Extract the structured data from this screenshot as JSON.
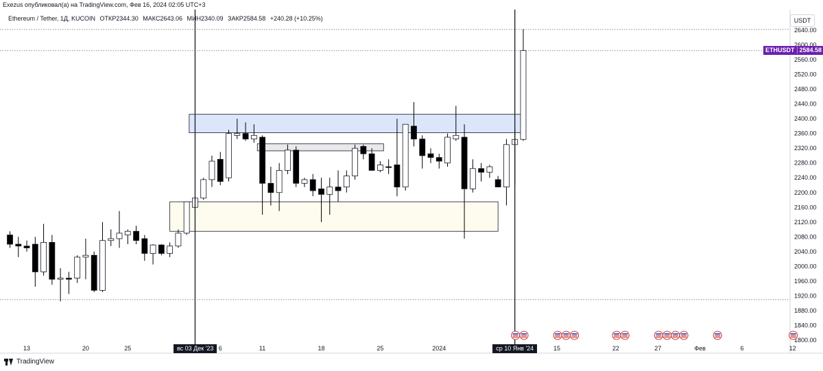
{
  "caption": "Exezus опубликовал(а) на TradingView.com, Фев 16, 2024 02:05 UTC+3",
  "header": {
    "pair": "Ethereum / Tether, 1Д, KUCOIN",
    "open": "ОТКР2344.30",
    "high": "МАКС2643.06",
    "low": "МИН2340.09",
    "close": "ЗАКР2584.58",
    "change": "+240.28 (+10.25%)"
  },
  "currency": "USDT",
  "price_tag": {
    "symbol": "ETHUSDT",
    "value": "2584.58",
    "color": "#6b1fae"
  },
  "markers": {
    "left_date": "вс 03 Дек '23",
    "right_date": "ср 10 Янв '24"
  },
  "footer": {
    "brand": "TradingView"
  },
  "colors": {
    "up_fill": "#ffffff",
    "down_fill": "#000000",
    "wick": "#000000",
    "resistance_zone": "#dce6fb",
    "support_zone": "#fdfcee",
    "mid_zone": "#e9e9ec"
  },
  "chart_data": {
    "type": "candlestick",
    "title": "Ethereum / Tether, 1Д, KUCOIN",
    "ylim": [
      1800,
      2660
    ],
    "y_ticks": [
      1800,
      1840,
      1880,
      1920,
      1960,
      2000,
      2040,
      2080,
      2120,
      2160,
      2200,
      2240,
      2280,
      2320,
      2360,
      2400,
      2440,
      2480,
      2520,
      2560,
      2600,
      2640
    ],
    "y_tick_labels": [
      "1800.00",
      "1840.00",
      "1880.00",
      "1920.00",
      "1960.00",
      "2000.00",
      "2040.00",
      "2080.00",
      "2120.00",
      "2160.00",
      "2200.00",
      "2240.00",
      "2280.00",
      "2320.00",
      "2360.00",
      "2400.00",
      "2440.00",
      "2480.00",
      "2520.00",
      "2560.00",
      "2600.00",
      "2640.00"
    ],
    "x_ticks": [
      {
        "label": "13",
        "index": 2
      },
      {
        "label": "20",
        "index": 9
      },
      {
        "label": "25",
        "index": 14
      },
      {
        "label": "6",
        "index": 25
      },
      {
        "label": "11",
        "index": 30
      },
      {
        "label": "18",
        "index": 37
      },
      {
        "label": "25",
        "index": 44
      },
      {
        "label": "2024",
        "index": 51
      },
      {
        "label": "15",
        "index": 65
      },
      {
        "label": "22",
        "index": 72
      },
      {
        "label": "27",
        "index": 77
      },
      {
        "label": "Фев",
        "index": 82
      },
      {
        "label": "6",
        "index": 87
      },
      {
        "label": "12",
        "index": 93
      }
    ],
    "marker_indices": [
      22,
      60
    ],
    "candles": [
      {
        "o": 2085,
        "h": 2095,
        "l": 2050,
        "c": 2060
      },
      {
        "o": 2060,
        "h": 2080,
        "l": 2025,
        "c": 2055
      },
      {
        "o": 2055,
        "h": 2070,
        "l": 2040,
        "c": 2050
      },
      {
        "o": 2060,
        "h": 2080,
        "l": 1945,
        "c": 1985
      },
      {
        "o": 1985,
        "h": 2115,
        "l": 1975,
        "c": 2065
      },
      {
        "o": 2065,
        "h": 2085,
        "l": 1950,
        "c": 1965
      },
      {
        "o": 1965,
        "h": 1995,
        "l": 1905,
        "c": 1968
      },
      {
        "o": 1968,
        "h": 1985,
        "l": 1925,
        "c": 1965
      },
      {
        "o": 1968,
        "h": 2030,
        "l": 1955,
        "c": 2025
      },
      {
        "o": 2025,
        "h": 2075,
        "l": 1965,
        "c": 2030
      },
      {
        "o": 2030,
        "h": 2040,
        "l": 1930,
        "c": 1935
      },
      {
        "o": 1935,
        "h": 2120,
        "l": 1930,
        "c": 2070
      },
      {
        "o": 2070,
        "h": 2100,
        "l": 2055,
        "c": 2075
      },
      {
        "o": 2075,
        "h": 2150,
        "l": 2050,
        "c": 2090
      },
      {
        "o": 2085,
        "h": 2100,
        "l": 2060,
        "c": 2095
      },
      {
        "o": 2095,
        "h": 2110,
        "l": 2060,
        "c": 2070
      },
      {
        "o": 2075,
        "h": 2085,
        "l": 2015,
        "c": 2035
      },
      {
        "o": 2035,
        "h": 2060,
        "l": 2005,
        "c": 2058
      },
      {
        "o": 2058,
        "h": 2060,
        "l": 2030,
        "c": 2035
      },
      {
        "o": 2035,
        "h": 2065,
        "l": 2025,
        "c": 2055
      },
      {
        "o": 2055,
        "h": 2100,
        "l": 2050,
        "c": 2090
      },
      {
        "o": 2090,
        "h": 2175,
        "l": 2085,
        "c": 2175
      },
      {
        "o": 2160,
        "h": 2190,
        "l": 2150,
        "c": 2185
      },
      {
        "o": 2185,
        "h": 2240,
        "l": 2180,
        "c": 2235
      },
      {
        "o": 2235,
        "h": 2300,
        "l": 2215,
        "c": 2285
      },
      {
        "o": 2290,
        "h": 2310,
        "l": 2220,
        "c": 2230
      },
      {
        "o": 2240,
        "h": 2370,
        "l": 2230,
        "c": 2360
      },
      {
        "o": 2355,
        "h": 2400,
        "l": 2345,
        "c": 2360
      },
      {
        "o": 2360,
        "h": 2390,
        "l": 2340,
        "c": 2345
      },
      {
        "o": 2345,
        "h": 2385,
        "l": 2335,
        "c": 2355
      },
      {
        "o": 2350,
        "h": 2355,
        "l": 2140,
        "c": 2225
      },
      {
        "o": 2225,
        "h": 2270,
        "l": 2165,
        "c": 2200
      },
      {
        "o": 2200,
        "h": 2280,
        "l": 2150,
        "c": 2260
      },
      {
        "o": 2260,
        "h": 2330,
        "l": 2250,
        "c": 2315
      },
      {
        "o": 2315,
        "h": 2325,
        "l": 2215,
        "c": 2225
      },
      {
        "o": 2225,
        "h": 2240,
        "l": 2215,
        "c": 2235
      },
      {
        "o": 2235,
        "h": 2250,
        "l": 2190,
        "c": 2205
      },
      {
        "o": 2210,
        "h": 2240,
        "l": 2120,
        "c": 2195
      },
      {
        "o": 2195,
        "h": 2240,
        "l": 2140,
        "c": 2215
      },
      {
        "o": 2215,
        "h": 2260,
        "l": 2175,
        "c": 2205
      },
      {
        "o": 2215,
        "h": 2260,
        "l": 2200,
        "c": 2245
      },
      {
        "o": 2245,
        "h": 2330,
        "l": 2235,
        "c": 2320
      },
      {
        "o": 2325,
        "h": 2330,
        "l": 2290,
        "c": 2305
      },
      {
        "o": 2305,
        "h": 2320,
        "l": 2260,
        "c": 2260
      },
      {
        "o": 2260,
        "h": 2285,
        "l": 2255,
        "c": 2275
      },
      {
        "o": 2270,
        "h": 2290,
        "l": 2250,
        "c": 2268
      },
      {
        "o": 2275,
        "h": 2400,
        "l": 2190,
        "c": 2215
      },
      {
        "o": 2215,
        "h": 2385,
        "l": 2205,
        "c": 2385
      },
      {
        "o": 2380,
        "h": 2445,
        "l": 2325,
        "c": 2345
      },
      {
        "o": 2345,
        "h": 2355,
        "l": 2265,
        "c": 2300
      },
      {
        "o": 2305,
        "h": 2320,
        "l": 2280,
        "c": 2295
      },
      {
        "o": 2295,
        "h": 2305,
        "l": 2265,
        "c": 2285
      },
      {
        "o": 2280,
        "h": 2360,
        "l": 2270,
        "c": 2350
      },
      {
        "o": 2345,
        "h": 2435,
        "l": 2340,
        "c": 2355
      },
      {
        "o": 2350,
        "h": 2385,
        "l": 2075,
        "c": 2210
      },
      {
        "o": 2210,
        "h": 2290,
        "l": 2200,
        "c": 2265
      },
      {
        "o": 2265,
        "h": 2280,
        "l": 2230,
        "c": 2255
      },
      {
        "o": 2255,
        "h": 2275,
        "l": 2240,
        "c": 2270
      },
      {
        "o": 2235,
        "h": 2245,
        "l": 2215,
        "c": 2215
      },
      {
        "o": 2215,
        "h": 2345,
        "l": 2165,
        "c": 2330
      },
      {
        "o": 2330,
        "h": 2370,
        "l": 2220,
        "c": 2344
      },
      {
        "o": 2344,
        "h": 2643,
        "l": 2340,
        "c": 2585
      }
    ],
    "zones": [
      {
        "name": "resistance",
        "from_index": 21.3,
        "to_index": 61,
        "low": 2362,
        "high": 2412
      },
      {
        "name": "inner",
        "from_index": 29.4,
        "to_index": 44.4,
        "low": 2313,
        "high": 2332
      },
      {
        "name": "support",
        "from_index": 19,
        "to_index": 58,
        "low": 2095,
        "high": 2175
      }
    ],
    "hlines": [
      2642,
      2584.58,
      1910
    ],
    "event_icons": [
      [
        60,
        61
      ],
      [
        65,
        66,
        67
      ],
      [
        72,
        73
      ],
      [
        77,
        78,
        79,
        80
      ],
      [
        84
      ],
      [
        93
      ]
    ]
  }
}
